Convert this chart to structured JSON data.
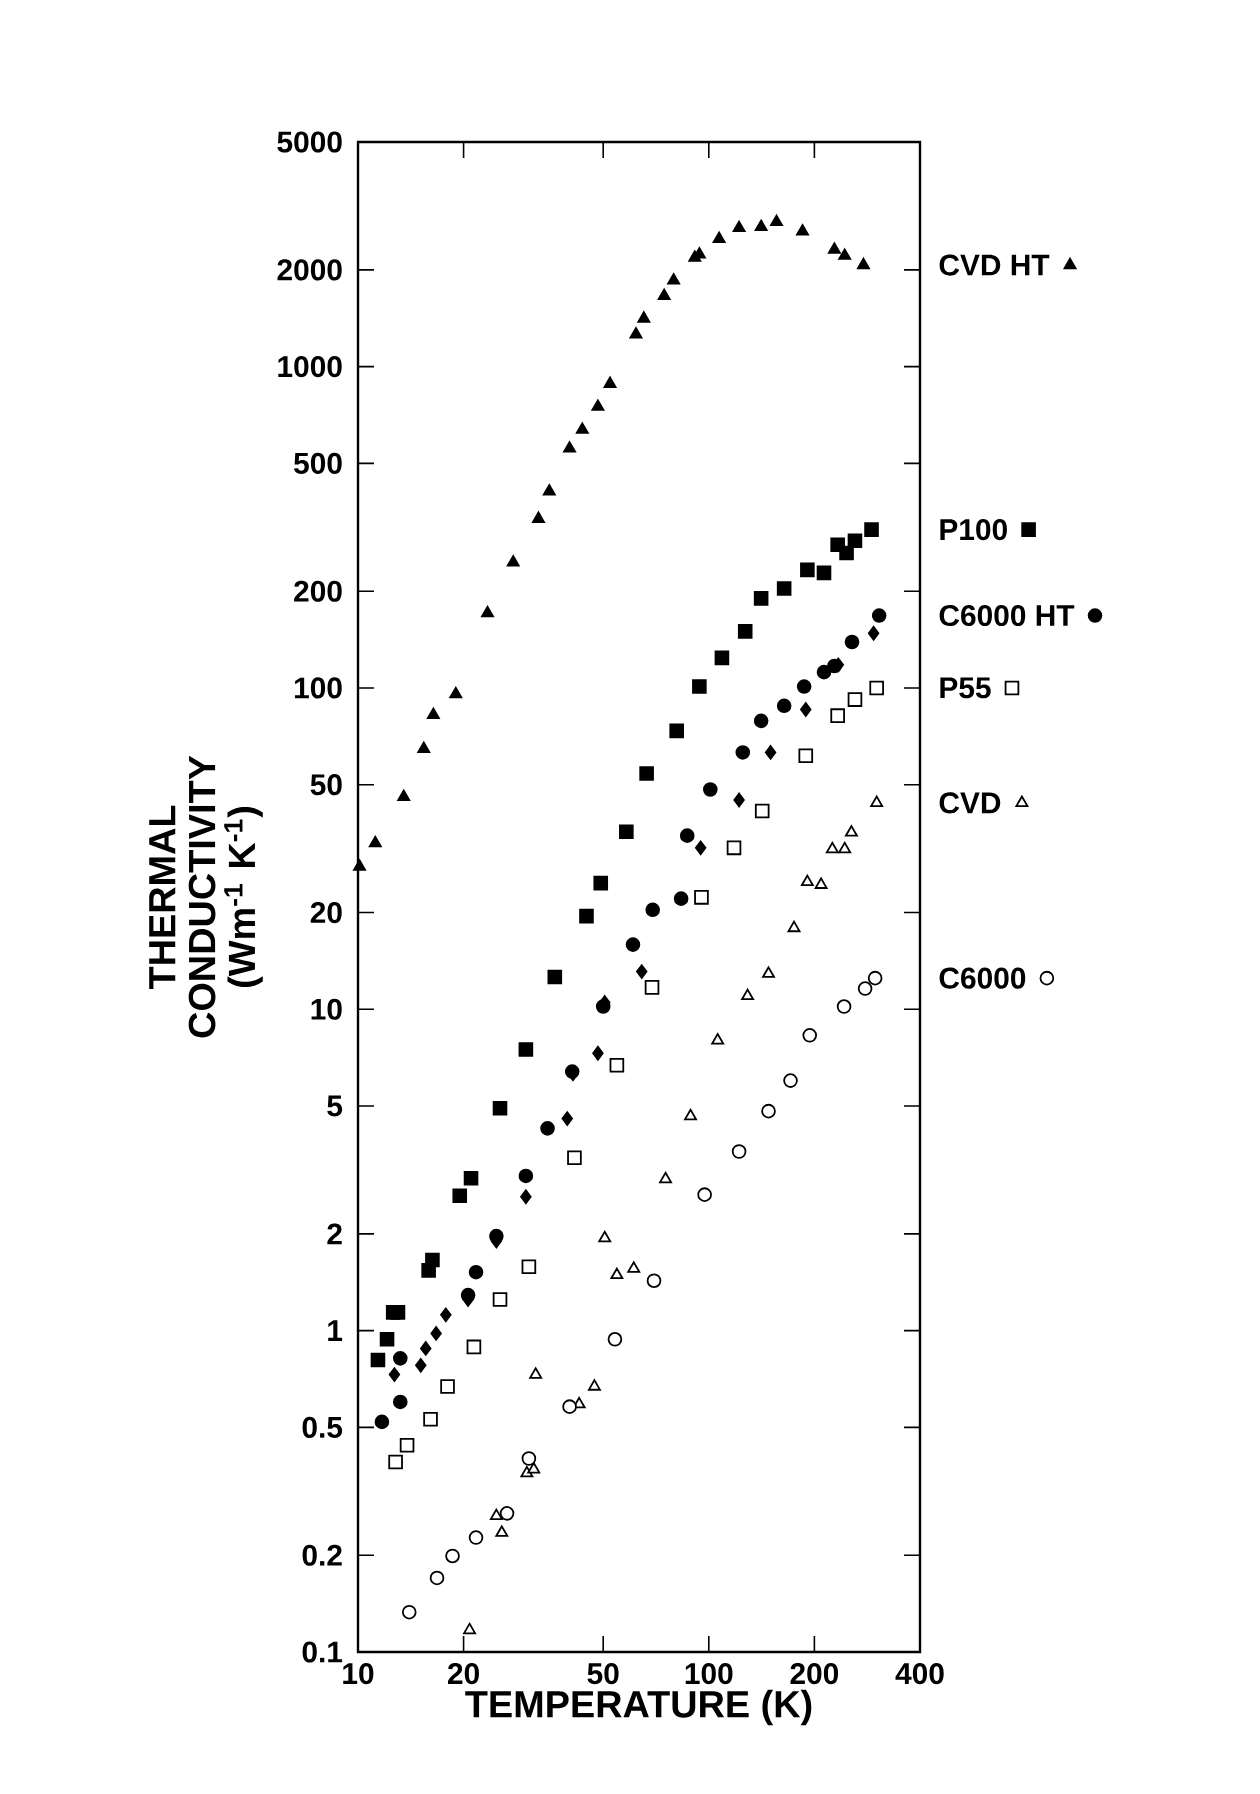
{
  "chart_data": {
    "type": "scatter",
    "xlabel": "TEMPERATURE (K)",
    "ylabel": "THERMAL CONDUCTIVITY (Wm$^{-1}$ K$^{-1}$)",
    "log": "xy",
    "xlim": [
      10,
      400
    ],
    "ylim": [
      0.1,
      5000
    ],
    "xticks": [
      10,
      20,
      50,
      100,
      200,
      400
    ],
    "yticks": [
      0.1,
      0.2,
      0.5,
      1,
      2,
      5,
      10,
      20,
      50,
      100,
      200,
      500,
      1000,
      2000,
      5000
    ],
    "grid": false,
    "legend": "right",
    "series": [
      {
        "name": "CVD HT",
        "color": "#000000",
        "marker": "triangle",
        "x": [
          10.1,
          11.2,
          13.5,
          15.4,
          16.4,
          19.0,
          23.4,
          27.7,
          32.7,
          35.1,
          40.1,
          43.6,
          48.3,
          52.3,
          62.0,
          65.3,
          74.6,
          79.4,
          91.2,
          94.0,
          107,
          122,
          141,
          156,
          185,
          228,
          244,
          276
        ],
        "values": [
          27.8,
          32.9,
          45.8,
          64.6,
          82.4,
          95.7,
          171,
          246,
          336,
          409,
          556,
          636,
          750,
          884,
          1259,
          1411,
          1660,
          1855,
          2183,
          2234,
          2496,
          2700,
          2722,
          2818,
          2636,
          2312,
          2213,
          2070
        ]
      },
      {
        "name": "P100",
        "color": "#000000",
        "marker": "square",
        "x": [
          11.4,
          12.1,
          12.6,
          13.0,
          15.9,
          16.3,
          19.5,
          21.0,
          25.4,
          30.1,
          36.4,
          44.8,
          49.2,
          58.2,
          66.5,
          81,
          94,
          109,
          127,
          141,
          164,
          191,
          213,
          233,
          247,
          261,
          291
        ],
        "values": [
          0.81,
          0.94,
          1.14,
          1.14,
          1.54,
          1.66,
          2.63,
          2.98,
          4.92,
          7.5,
          12.6,
          19.5,
          24.7,
          35.7,
          54.2,
          73.5,
          101,
          124,
          150,
          190,
          204,
          233,
          228,
          279,
          263,
          287,
          311
        ]
      },
      {
        "name": "C6000 HT",
        "color": "#000000",
        "marker": "circle",
        "x": [
          11.7,
          13.2,
          13.2,
          20.6,
          21.7,
          24.8,
          30.1,
          34.7,
          40.8,
          50.0,
          60.8,
          69.2,
          83.4,
          86.8,
          101,
          125,
          141,
          164,
          187,
          213,
          228,
          256,
          306
        ],
        "values": [
          0.52,
          0.6,
          0.82,
          1.29,
          1.52,
          1.97,
          3.03,
          4.26,
          6.4,
          10.2,
          15.9,
          20.4,
          22.1,
          34.7,
          48.3,
          63,
          79,
          88,
          101,
          112,
          117,
          139,
          168
        ]
      },
      {
        "color": "#000000",
        "marker": "diamond",
        "x": [
          12.7,
          15.1,
          15.6,
          16.7,
          17.8,
          20.6,
          24.8,
          30.1,
          39.5,
          41,
          48.3,
          50.5,
          64.4,
          94.8,
          122,
          150,
          189,
          234,
          295
        ],
        "values": [
          0.73,
          0.78,
          0.88,
          0.98,
          1.12,
          1.25,
          1.9,
          2.61,
          4.57,
          6.3,
          7.3,
          10.5,
          13.1,
          31.8,
          44.8,
          63,
          85.7,
          118,
          148
        ]
      },
      {
        "name": "P55",
        "color": "#ffffff",
        "marker": "square",
        "x": [
          12.8,
          13.8,
          16.1,
          18.0,
          21.4,
          25.4,
          30.7,
          41.4,
          54.7,
          68.9,
          95.3,
          118,
          142,
          189,
          233,
          261,
          301
        ],
        "values": [
          0.39,
          0.44,
          0.53,
          0.67,
          0.89,
          1.25,
          1.58,
          3.45,
          6.7,
          11.7,
          22.3,
          31.8,
          41.4,
          61.5,
          82,
          92,
          100
        ]
      },
      {
        "name": "CVD",
        "color": "#ffffff",
        "marker": "triangle",
        "x": [
          20.8,
          24.8,
          25.7,
          30.3,
          31.7,
          32.1,
          42.7,
          47.2,
          50.5,
          54.7,
          61.1,
          75.3,
          88.7,
          106,
          129,
          148,
          175,
          191,
          209,
          225,
          244,
          255,
          301
        ],
        "values": [
          0.117,
          0.265,
          0.235,
          0.36,
          0.37,
          0.73,
          0.59,
          0.67,
          1.94,
          1.49,
          1.56,
          2.96,
          4.65,
          8.0,
          11.0,
          12.9,
          17.9,
          24.9,
          24.4,
          31.5,
          31.5,
          35.5,
          43.9
        ]
      },
      {
        "name": "C6000",
        "color": "#ffffff",
        "marker": "circle",
        "x": [
          14.0,
          16.8,
          18.6,
          21.7,
          26.6,
          30.7,
          40.1,
          54.0,
          69.8,
          97.3,
          122,
          148,
          171,
          194,
          243,
          279,
          298
        ],
        "values": [
          0.133,
          0.17,
          0.199,
          0.227,
          0.27,
          0.4,
          0.58,
          0.94,
          1.43,
          2.65,
          3.61,
          4.82,
          6.0,
          8.3,
          10.2,
          11.6,
          12.5
        ]
      }
    ]
  }
}
